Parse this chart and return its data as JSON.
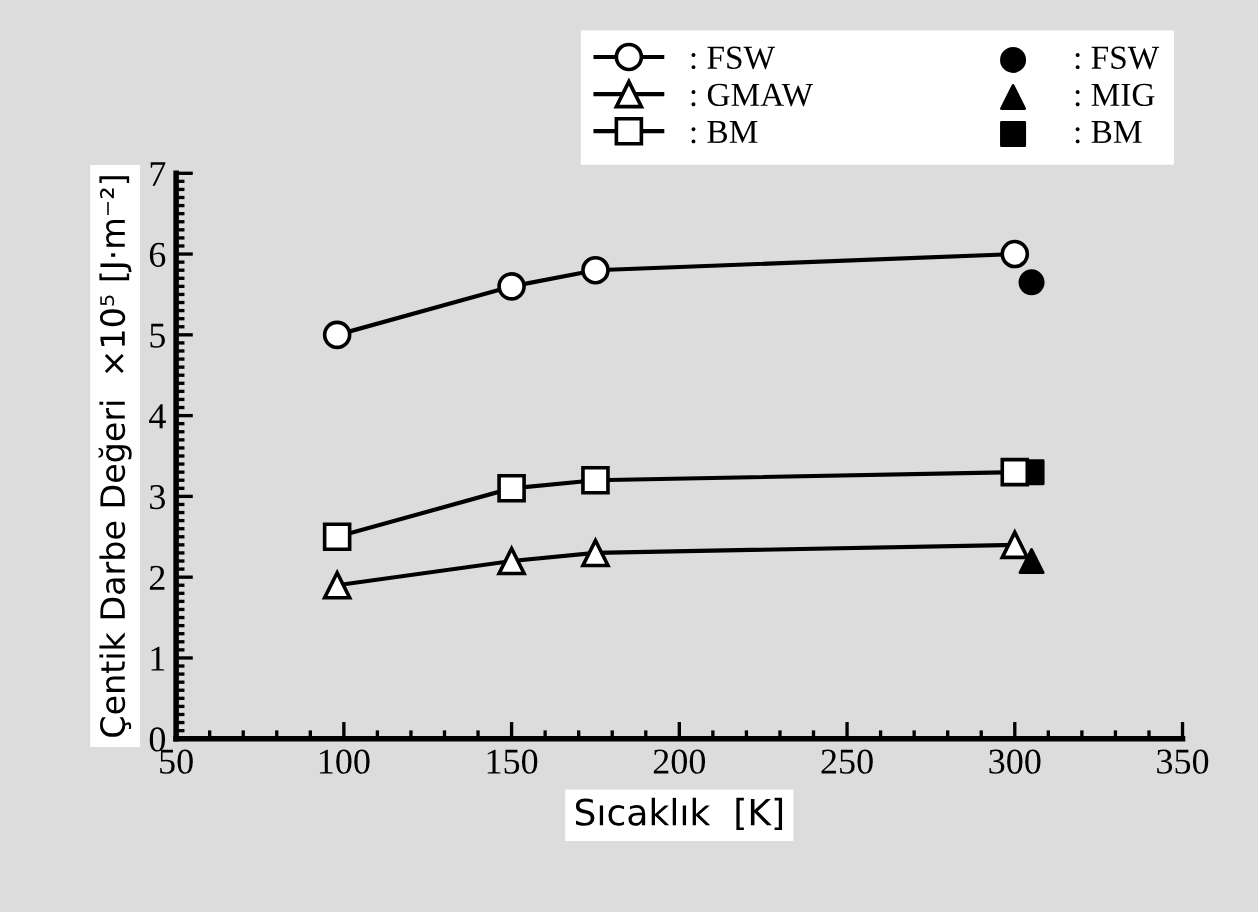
{
  "chart_data": {
    "type": "line",
    "xlabel": "Sıcaklık  [K]",
    "ylabel": "Çentik Darbe Değeri  ×10⁵ [J·m⁻²]",
    "xlim": [
      50,
      350
    ],
    "xticks": [
      50,
      100,
      150,
      200,
      250,
      300,
      350
    ],
    "ylim": [
      0,
      7
    ],
    "yticks": [
      0,
      1,
      2,
      3,
      4,
      5,
      6,
      7
    ],
    "grid": false,
    "legend": "top right",
    "line_style": "solid",
    "series": [
      {
        "name": ": FSW",
        "color": "#000000",
        "marker": "circle",
        "x": [
          98,
          150,
          175,
          300
        ],
        "values": [
          5.0,
          5.6,
          5.8,
          6.0
        ]
      },
      {
        "name": ": GMAW",
        "color": "#000000",
        "marker": "triangle",
        "x": [
          98,
          150,
          175,
          300
        ],
        "values": [
          1.9,
          2.2,
          2.3,
          2.4
        ]
      },
      {
        "name": ": BM",
        "color": "#000000",
        "marker": "square",
        "x": [
          98,
          150,
          175,
          300
        ],
        "values": [
          2.5,
          3.1,
          3.2,
          3.3
        ]
      },
      {
        "name": ": FSW",
        "type": "scatter",
        "color": "#000000",
        "marker": "circle",
        "x": [
          305
        ],
        "values": [
          5.65
        ]
      },
      {
        "name": ": MIG",
        "type": "scatter",
        "color": "#000000",
        "marker": "triangle",
        "x": [
          305
        ],
        "values": [
          2.2
        ]
      },
      {
        "name": ": BM",
        "type": "scatter",
        "color": "#000000",
        "marker": "square",
        "x": [
          305
        ],
        "values": [
          3.3
        ]
      }
    ]
  }
}
